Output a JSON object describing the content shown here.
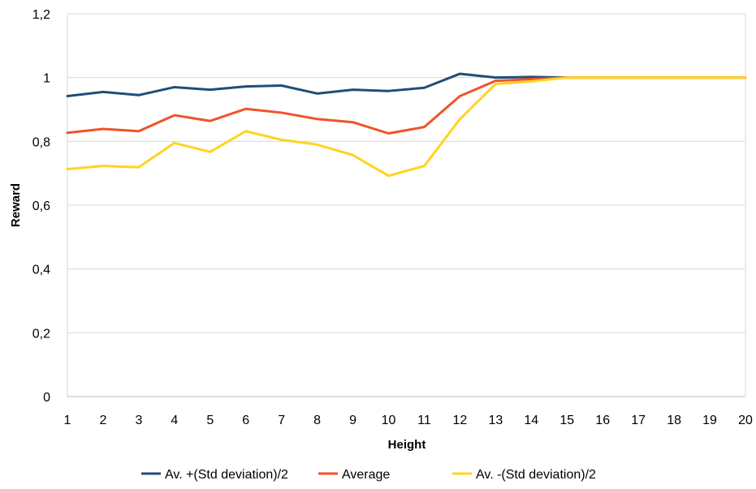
{
  "chart_data": {
    "type": "line",
    "title": "",
    "xlabel": "Height",
    "ylabel": "Reward",
    "x": [
      1,
      2,
      3,
      4,
      5,
      6,
      7,
      8,
      9,
      10,
      11,
      12,
      13,
      14,
      15,
      16,
      17,
      18,
      19,
      20
    ],
    "x_tick_labels": [
      "1",
      "2",
      "3",
      "4",
      "5",
      "6",
      "7",
      "8",
      "9",
      "10",
      "11",
      "12",
      "13",
      "14",
      "15",
      "16",
      "17",
      "18",
      "19",
      "20"
    ],
    "ylim": [
      0,
      1.2
    ],
    "y_ticks": [
      0,
      0.2,
      0.4,
      0.6,
      0.8,
      1.0,
      1.2
    ],
    "y_tick_labels": [
      "0",
      "0,2",
      "0,4",
      "0,6",
      "0,8",
      "1",
      "1,2"
    ],
    "grid": "horizontal",
    "legend_position": "bottom",
    "series": [
      {
        "name": "Av. +(Std deviation)/2",
        "color": "#1F4E79",
        "values": [
          0.942,
          0.955,
          0.945,
          0.97,
          0.962,
          0.972,
          0.975,
          0.95,
          0.962,
          0.958,
          0.968,
          1.012,
          1.0,
          1.002,
          1.0,
          1.0,
          1.0,
          1.0,
          1.0,
          1.0
        ]
      },
      {
        "name": "Average",
        "color": "#F0532A",
        "values": [
          0.827,
          0.839,
          0.832,
          0.882,
          0.864,
          0.902,
          0.89,
          0.87,
          0.86,
          0.825,
          0.845,
          0.942,
          0.99,
          0.995,
          1.0,
          1.0,
          1.0,
          1.0,
          1.0,
          1.0
        ]
      },
      {
        "name": "Av. -(Std deviation)/2",
        "color": "#FFD320",
        "values": [
          0.713,
          0.723,
          0.719,
          0.795,
          0.767,
          0.832,
          0.805,
          0.79,
          0.757,
          0.692,
          0.723,
          0.87,
          0.98,
          0.988,
          1.0,
          1.0,
          1.0,
          1.0,
          1.0,
          1.0
        ]
      }
    ]
  }
}
